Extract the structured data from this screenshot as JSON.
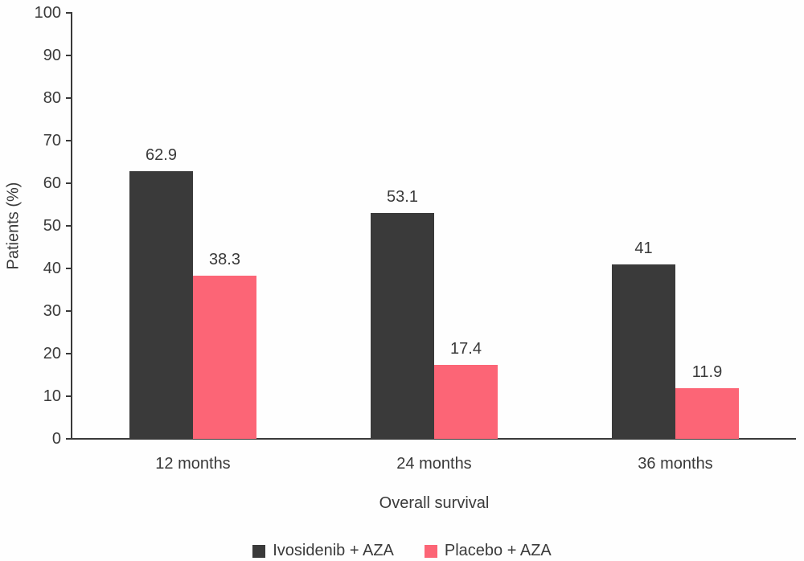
{
  "chart_data": {
    "type": "bar",
    "categories": [
      "12 months",
      "24 months",
      "36 months"
    ],
    "series": [
      {
        "name": "Ivosidenib + AZA",
        "color": "#3a3a3a",
        "values": [
          62.9,
          53.1,
          41
        ]
      },
      {
        "name": "Placebo + AZA",
        "color": "#fc6576",
        "values": [
          38.3,
          17.4,
          11.9
        ]
      }
    ],
    "xlabel": "Overall survival",
    "ylabel": "Patients (%)",
    "ylim": [
      0,
      100
    ],
    "yticks": [
      0,
      10,
      20,
      30,
      40,
      50,
      60,
      70,
      80,
      90,
      100
    ],
    "grid": false,
    "legend_position": "bottom",
    "value_labels": true,
    "text_color": "#3a3a3a",
    "axis_color": "#3a3a3a"
  }
}
